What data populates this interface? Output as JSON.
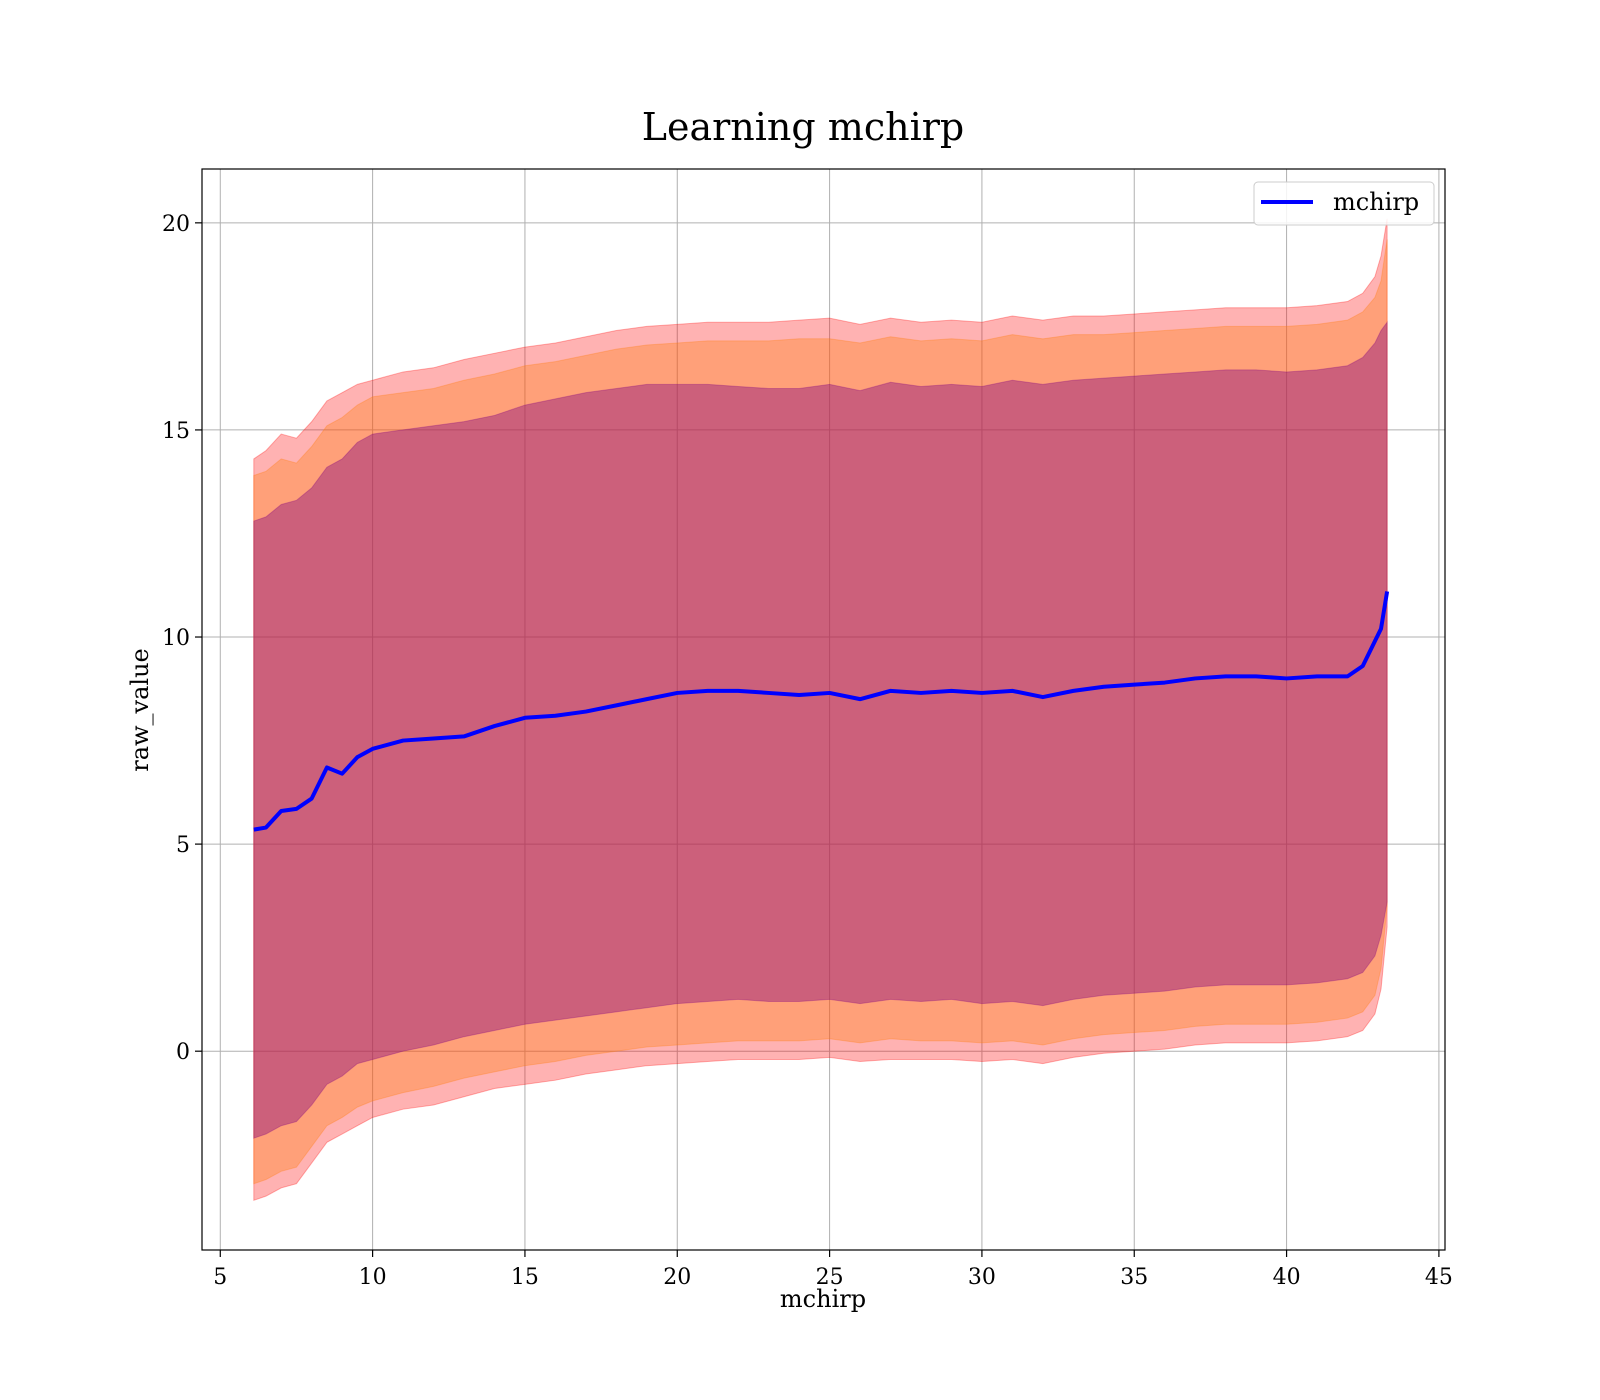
{
  "chart_data": {
    "type": "area",
    "title": "Learning mchirp",
    "xlabel": "mchirp",
    "ylabel": "raw_value",
    "xlim": [
      4.4,
      45.2
    ],
    "ylim": [
      -4.8,
      21.3
    ],
    "xticks": [
      5,
      10,
      15,
      20,
      25,
      30,
      35,
      40,
      45
    ],
    "yticks": [
      0,
      5,
      10,
      15,
      20
    ],
    "grid": true,
    "legend": {
      "position": "top-right",
      "entries": [
        "mchirp"
      ]
    },
    "colors": {
      "line": "#0000ff",
      "band_outer": "#ff0000",
      "band_middle": "#ff7f0e",
      "band_inner": "#800080"
    },
    "x": [
      6.1,
      6.5,
      7.0,
      7.5,
      8.0,
      8.5,
      9.0,
      9.5,
      10,
      11,
      12,
      13,
      14,
      15,
      16,
      17,
      18,
      19,
      20,
      21,
      22,
      23,
      24,
      25,
      26,
      27,
      28,
      29,
      30,
      31,
      32,
      33,
      34,
      35,
      36,
      37,
      38,
      39,
      40,
      41,
      42,
      42.5,
      42.9,
      43.1,
      43.3
    ],
    "series": [
      {
        "name": "mchirp",
        "values": [
          5.35,
          5.4,
          5.8,
          5.85,
          6.1,
          6.85,
          6.7,
          7.1,
          7.3,
          7.5,
          7.55,
          7.6,
          7.85,
          8.05,
          8.1,
          8.2,
          8.35,
          8.5,
          8.65,
          8.7,
          8.7,
          8.65,
          8.6,
          8.65,
          8.5,
          8.7,
          8.65,
          8.7,
          8.65,
          8.7,
          8.55,
          8.7,
          8.8,
          8.85,
          8.9,
          9.0,
          9.05,
          9.05,
          9.0,
          9.05,
          9.05,
          9.3,
          9.9,
          10.2,
          11.1
        ]
      }
    ],
    "bands": [
      {
        "level": "outer",
        "upper": [
          14.3,
          14.5,
          14.9,
          14.8,
          15.2,
          15.7,
          15.9,
          16.1,
          16.2,
          16.4,
          16.5,
          16.7,
          16.85,
          17.0,
          17.1,
          17.25,
          17.4,
          17.5,
          17.55,
          17.6,
          17.6,
          17.6,
          17.65,
          17.7,
          17.55,
          17.7,
          17.6,
          17.65,
          17.6,
          17.75,
          17.65,
          17.75,
          17.75,
          17.8,
          17.85,
          17.9,
          17.95,
          17.95,
          17.95,
          18.0,
          18.1,
          18.3,
          18.7,
          19.2,
          20.1
        ],
        "lower": [
          -3.6,
          -3.5,
          -3.3,
          -3.2,
          -2.7,
          -2.2,
          -2.0,
          -1.8,
          -1.6,
          -1.4,
          -1.3,
          -1.1,
          -0.9,
          -0.8,
          -0.7,
          -0.55,
          -0.45,
          -0.35,
          -0.3,
          -0.25,
          -0.2,
          -0.2,
          -0.2,
          -0.15,
          -0.25,
          -0.2,
          -0.2,
          -0.2,
          -0.25,
          -0.2,
          -0.3,
          -0.15,
          -0.05,
          0.0,
          0.05,
          0.15,
          0.2,
          0.2,
          0.2,
          0.25,
          0.35,
          0.5,
          0.9,
          1.5,
          3.0
        ]
      },
      {
        "level": "middle",
        "upper": [
          13.9,
          14.0,
          14.3,
          14.2,
          14.6,
          15.1,
          15.3,
          15.6,
          15.8,
          15.9,
          16.0,
          16.2,
          16.35,
          16.55,
          16.65,
          16.8,
          16.95,
          17.05,
          17.1,
          17.15,
          17.15,
          17.15,
          17.2,
          17.2,
          17.1,
          17.25,
          17.15,
          17.2,
          17.15,
          17.3,
          17.2,
          17.3,
          17.3,
          17.35,
          17.4,
          17.45,
          17.5,
          17.5,
          17.5,
          17.55,
          17.65,
          17.85,
          18.2,
          18.6,
          19.6
        ],
        "lower": [
          -3.2,
          -3.1,
          -2.9,
          -2.8,
          -2.3,
          -1.8,
          -1.6,
          -1.35,
          -1.2,
          -1.0,
          -0.85,
          -0.65,
          -0.5,
          -0.35,
          -0.25,
          -0.1,
          0.0,
          0.1,
          0.15,
          0.2,
          0.25,
          0.25,
          0.25,
          0.3,
          0.2,
          0.3,
          0.25,
          0.25,
          0.2,
          0.25,
          0.15,
          0.3,
          0.4,
          0.45,
          0.5,
          0.6,
          0.65,
          0.65,
          0.65,
          0.7,
          0.8,
          0.95,
          1.35,
          2.0,
          3.5
        ]
      },
      {
        "level": "inner",
        "upper": [
          12.8,
          12.9,
          13.2,
          13.3,
          13.6,
          14.1,
          14.3,
          14.7,
          14.9,
          15.0,
          15.1,
          15.2,
          15.35,
          15.6,
          15.75,
          15.9,
          16.0,
          16.1,
          16.1,
          16.1,
          16.05,
          16.0,
          16.0,
          16.1,
          15.95,
          16.15,
          16.05,
          16.1,
          16.05,
          16.2,
          16.1,
          16.2,
          16.25,
          16.3,
          16.35,
          16.4,
          16.45,
          16.45,
          16.4,
          16.45,
          16.55,
          16.75,
          17.1,
          17.4,
          17.6
        ],
        "lower": [
          -2.1,
          -2.0,
          -1.8,
          -1.7,
          -1.3,
          -0.8,
          -0.6,
          -0.3,
          -0.2,
          0.0,
          0.15,
          0.35,
          0.5,
          0.65,
          0.75,
          0.85,
          0.95,
          1.05,
          1.15,
          1.2,
          1.25,
          1.2,
          1.2,
          1.25,
          1.15,
          1.25,
          1.2,
          1.25,
          1.15,
          1.2,
          1.1,
          1.25,
          1.35,
          1.4,
          1.45,
          1.55,
          1.6,
          1.6,
          1.6,
          1.65,
          1.75,
          1.9,
          2.3,
          2.8,
          3.6
        ]
      }
    ]
  }
}
